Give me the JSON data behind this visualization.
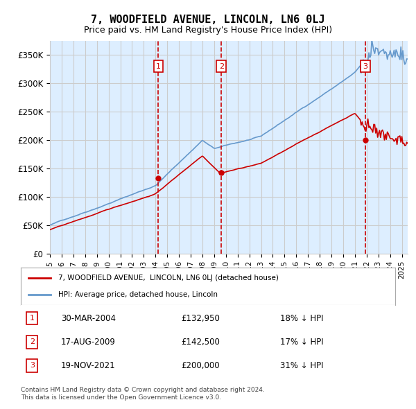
{
  "title": "7, WOODFIELD AVENUE, LINCOLN, LN6 0LJ",
  "subtitle": "Price paid vs. HM Land Registry's House Price Index (HPI)",
  "ylabel_ticks": [
    "£0",
    "£50K",
    "£100K",
    "£150K",
    "£200K",
    "£250K",
    "£300K",
    "£350K"
  ],
  "ytick_values": [
    0,
    50000,
    100000,
    150000,
    200000,
    250000,
    300000,
    350000
  ],
  "ylim": [
    0,
    375000
  ],
  "xlim_start": 1995.0,
  "xlim_end": 2025.5,
  "transactions": [
    {
      "num": 1,
      "year": 2004.25,
      "price": 132950,
      "date": "30-MAR-2004",
      "price_str": "£132,950",
      "pct": "18%",
      "dir": "↓"
    },
    {
      "num": 2,
      "year": 2009.62,
      "price": 142500,
      "date": "17-AUG-2009",
      "price_str": "£142,500",
      "pct": "17%",
      "dir": "↓"
    },
    {
      "num": 3,
      "year": 2021.88,
      "price": 200000,
      "date": "19-NOV-2021",
      "price_str": "£200,000",
      "pct": "31%",
      "dir": "↓"
    }
  ],
  "legend_line1": "7, WOODFIELD AVENUE,  LINCOLN, LN6 0LJ (detached house)",
  "legend_line2": "HPI: Average price, detached house, Lincoln",
  "footer1": "Contains HM Land Registry data © Crown copyright and database right 2024.",
  "footer2": "This data is licensed under the Open Government Licence v3.0.",
  "line_color_red": "#cc0000",
  "line_color_blue": "#6699cc",
  "shade_color": "#ddeeff",
  "grid_color": "#cccccc",
  "bg_color": "#ffffff",
  "transaction_box_color": "#cc0000",
  "dashed_line_color": "#cc0000"
}
